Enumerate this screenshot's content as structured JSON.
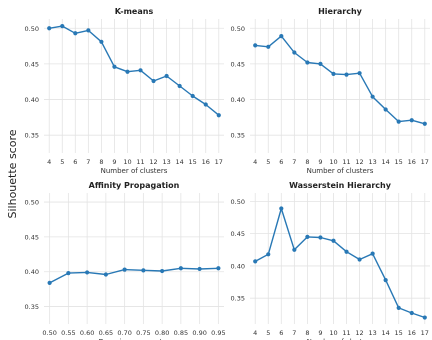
{
  "figure": {
    "ylabel": "Silhouette score"
  },
  "chart_data": [
    {
      "type": "line",
      "title": "K-means",
      "xlabel": "Number of clusters",
      "ylabel": "",
      "x": [
        4,
        5,
        6,
        7,
        8,
        9,
        10,
        11,
        12,
        13,
        14,
        15,
        16,
        17
      ],
      "x_tick_labels": [
        "4",
        "5",
        "6",
        "7",
        "8",
        "9",
        "10",
        "11",
        "12",
        "13",
        "14",
        "15",
        "16",
        "17"
      ],
      "series": [
        {
          "values": [
            0.5,
            0.503,
            0.493,
            0.497,
            0.481,
            0.446,
            0.439,
            0.441,
            0.426,
            0.433,
            0.419,
            0.405,
            0.393,
            0.378
          ]
        }
      ],
      "xlim": [
        3.6,
        17.4
      ],
      "ylim": [
        0.325,
        0.513
      ],
      "yticks": [
        0.35,
        0.4,
        0.45,
        0.5
      ],
      "y_tick_labels": [
        "0.35",
        "0.40",
        "0.45",
        "0.50"
      ],
      "grid": true,
      "color": "#2878b5"
    },
    {
      "type": "line",
      "title": "Hierarchy",
      "xlabel": "Number of clusters",
      "ylabel": "",
      "x": [
        4,
        5,
        6,
        7,
        8,
        9,
        10,
        11,
        12,
        13,
        14,
        15,
        16,
        17
      ],
      "x_tick_labels": [
        "4",
        "5",
        "6",
        "7",
        "8",
        "9",
        "10",
        "11",
        "12",
        "13",
        "14",
        "15",
        "16",
        "17"
      ],
      "series": [
        {
          "values": [
            0.476,
            0.474,
            0.489,
            0.466,
            0.452,
            0.45,
            0.436,
            0.435,
            0.437,
            0.404,
            0.386,
            0.369,
            0.371,
            0.366
          ]
        }
      ],
      "xlim": [
        3.6,
        17.4
      ],
      "ylim": [
        0.325,
        0.513
      ],
      "yticks": [
        0.35,
        0.4,
        0.45,
        0.5
      ],
      "y_tick_labels": [
        "0.35",
        "0.40",
        "0.45",
        "0.50"
      ],
      "grid": true,
      "color": "#2878b5"
    },
    {
      "type": "line",
      "title": "Affinity Propagation",
      "xlabel": "Damping parameter",
      "ylabel": "",
      "x": [
        0.5,
        0.55,
        0.6,
        0.65,
        0.7,
        0.75,
        0.8,
        0.85,
        0.9,
        0.95
      ],
      "x_tick_labels": [
        "0.50",
        "0.55",
        "0.60",
        "0.65",
        "0.70",
        "0.75",
        "0.80",
        "0.85",
        "0.90",
        "0.95"
      ],
      "series": [
        {
          "values": [
            0.384,
            0.398,
            0.399,
            0.396,
            0.403,
            0.402,
            0.401,
            0.405,
            0.404,
            0.405
          ]
        }
      ],
      "xlim": [
        0.485,
        0.965
      ],
      "ylim": [
        0.325,
        0.513
      ],
      "yticks": [
        0.35,
        0.4,
        0.45,
        0.5
      ],
      "y_tick_labels": [
        "0.35",
        "0.40",
        "0.45",
        "0.50"
      ],
      "grid": true,
      "color": "#2878b5"
    },
    {
      "type": "line",
      "title": "Wasserstein Hierarchy",
      "xlabel": "Number of clusters",
      "ylabel": "",
      "x": [
        4,
        5,
        6,
        7,
        8,
        9,
        10,
        11,
        12,
        13,
        14,
        15,
        16,
        17
      ],
      "x_tick_labels": [
        "4",
        "5",
        "6",
        "7",
        "8",
        "9",
        "10",
        "11",
        "12",
        "13",
        "14",
        "15",
        "16",
        "17"
      ],
      "series": [
        {
          "values": [
            0.407,
            0.418,
            0.489,
            0.425,
            0.445,
            0.444,
            0.439,
            0.422,
            0.41,
            0.419,
            0.378,
            0.335,
            0.327,
            0.32
          ]
        }
      ],
      "xlim": [
        3.6,
        17.4
      ],
      "ylim": [
        0.31,
        0.513
      ],
      "yticks": [
        0.35,
        0.4,
        0.45,
        0.5
      ],
      "y_tick_labels": [
        "0.35",
        "0.40",
        "0.45",
        "0.50"
      ],
      "grid": true,
      "color": "#2878b5"
    }
  ]
}
